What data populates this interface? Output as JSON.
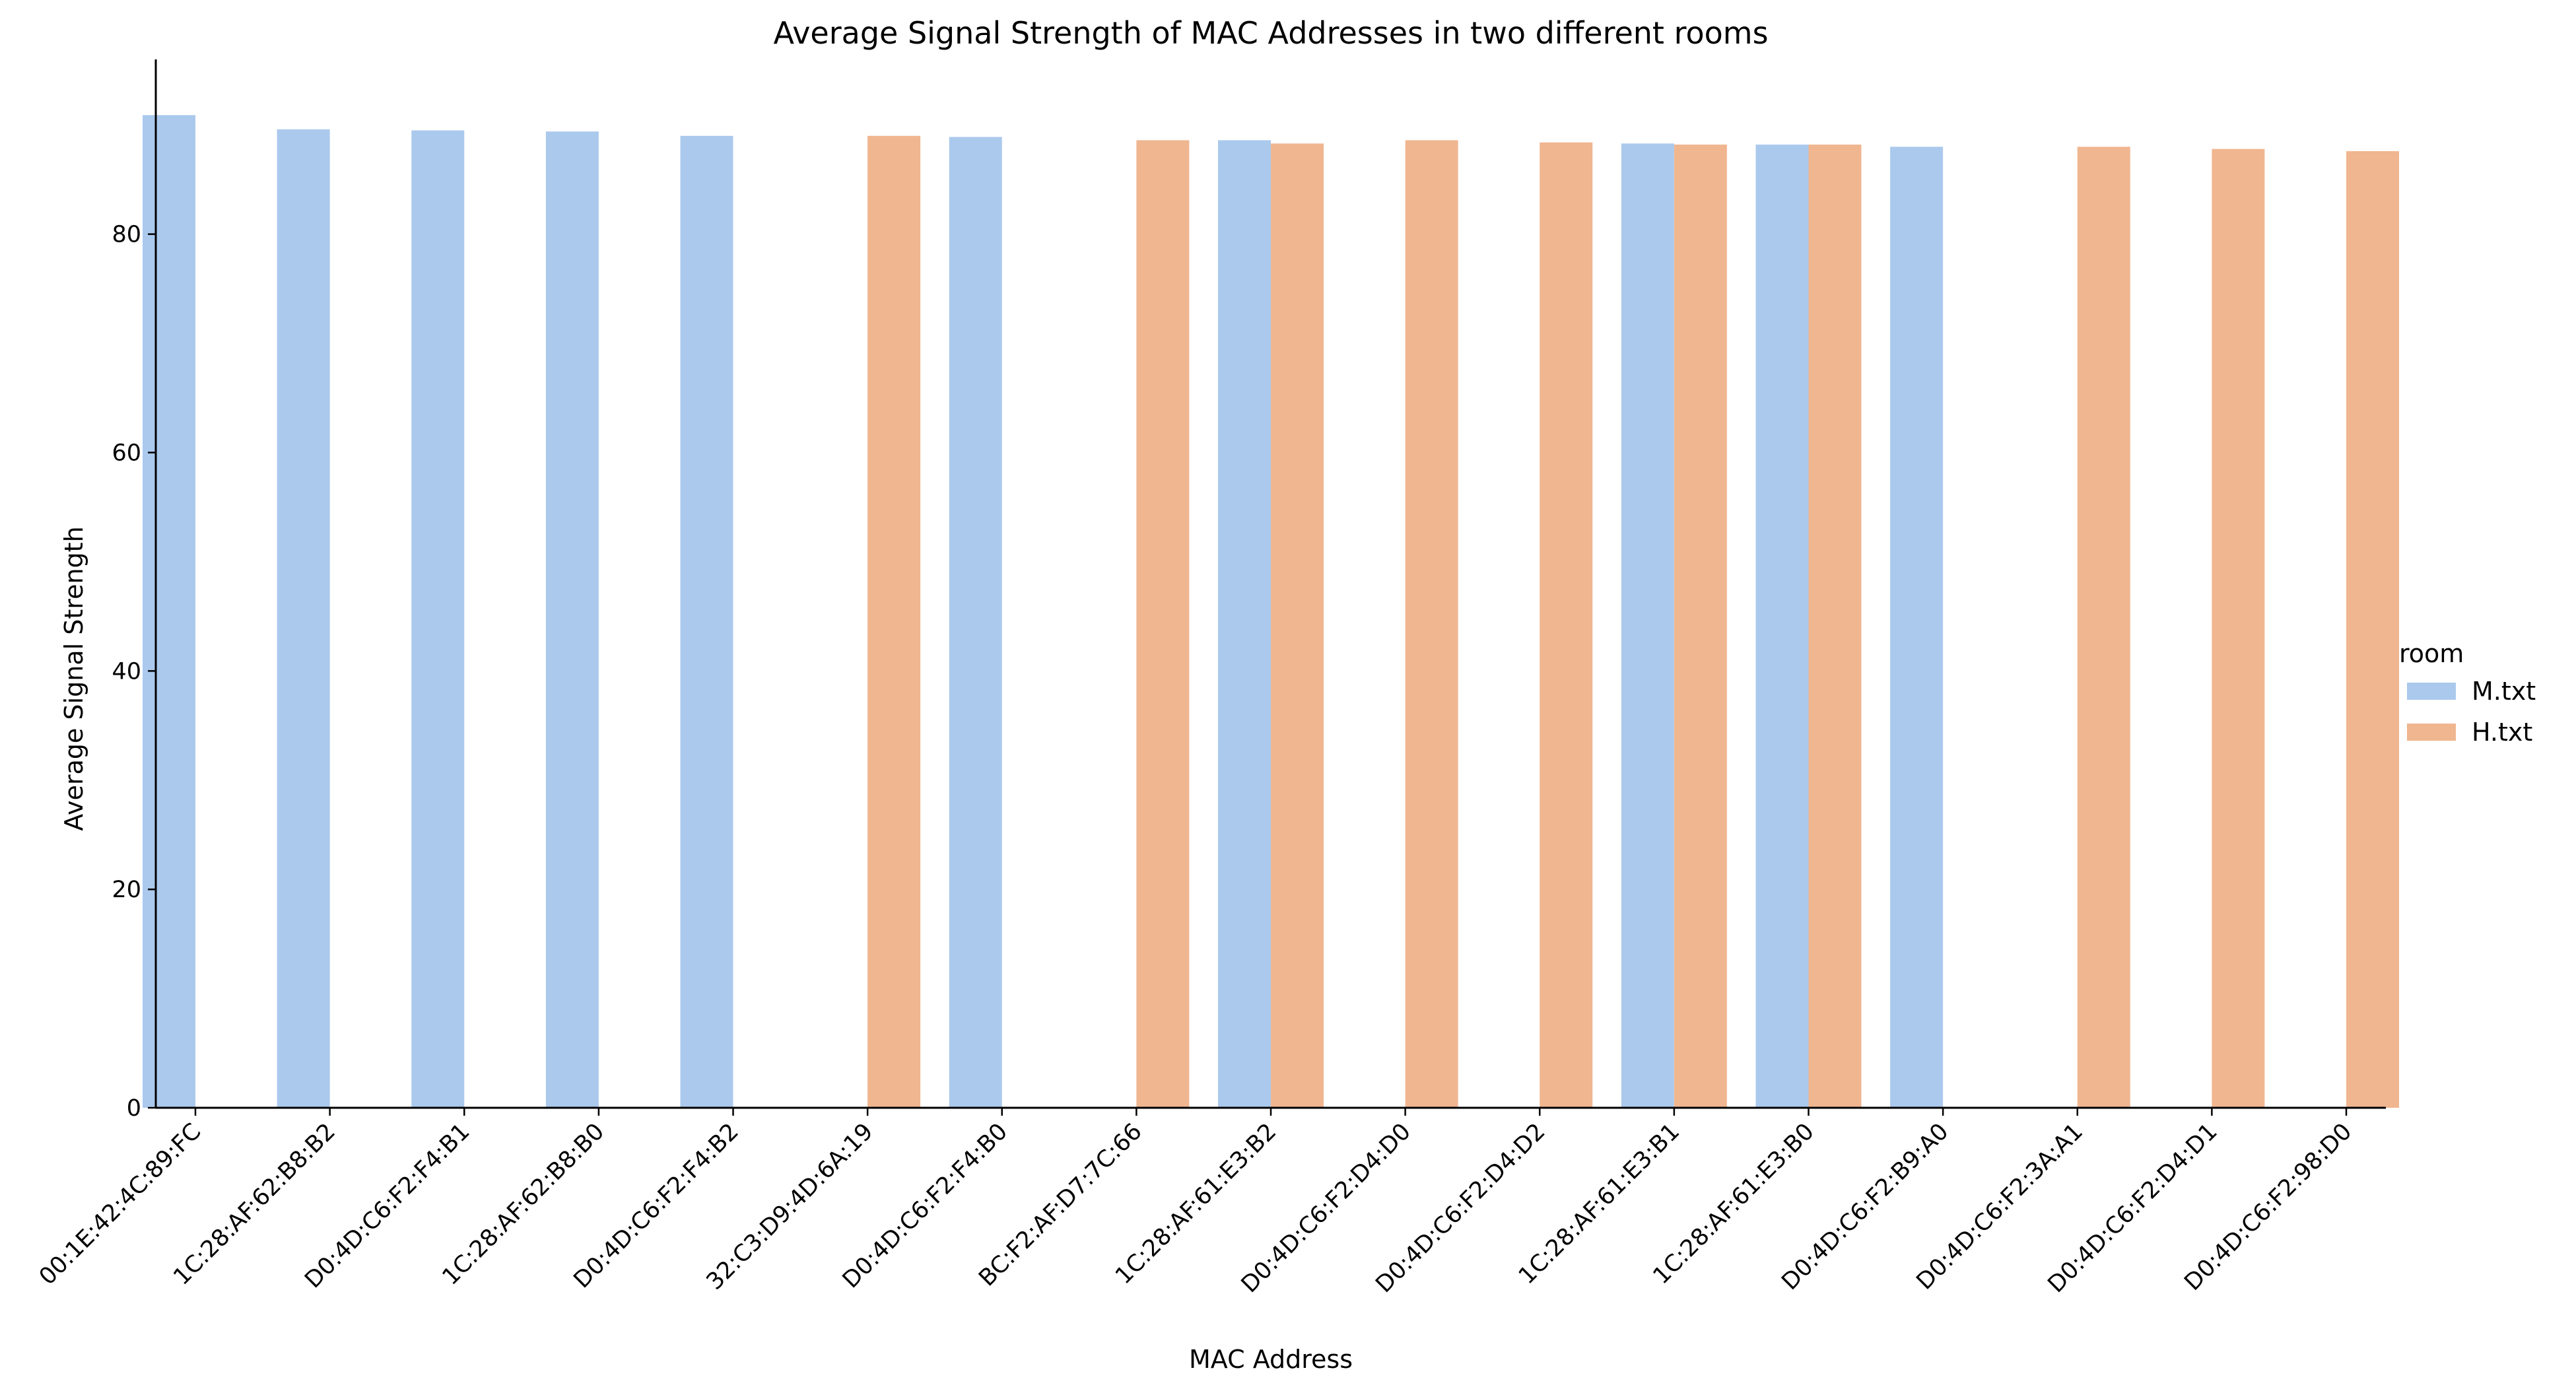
{
  "chart_data": {
    "type": "bar",
    "title": "Average Signal Strength of MAC Addresses in two different rooms",
    "xlabel": "MAC Address",
    "ylabel": "Average Signal Strength",
    "ylim": [
      0,
      96
    ],
    "yticks": [
      0,
      20,
      40,
      60,
      80
    ],
    "grid": false,
    "legend": {
      "title": "room",
      "placement": "right"
    },
    "categories": [
      "00:1E:42:4C:89:FC",
      "1C:28:AF:62:B8:B2",
      "D0:4D:C6:F2:F4:B1",
      "1C:28:AF:62:B8:B0",
      "D0:4D:C6:F2:F4:B2",
      "32:C3:D9:4D:6A:19",
      "D0:4D:C6:F2:F4:B0",
      "BC:F2:AF:D7:7C:66",
      "1C:28:AF:61:E3:B2",
      "D0:4D:C6:F2:D4:D0",
      "D0:4D:C6:F2:D4:D2",
      "1C:28:AF:61:E3:B1",
      "1C:28:AF:61:E3:B0",
      "D0:4D:C6:F2:B9:A0",
      "D0:4D:C6:F2:3A:A1",
      "D0:4D:C6:F2:D4:D1",
      "D0:4D:C6:F2:98:D0"
    ],
    "series": [
      {
        "name": "M.txt",
        "color": "#abc9ed",
        "values": [
          90.9,
          89.6,
          89.5,
          89.4,
          89.0,
          null,
          88.9,
          null,
          88.6,
          null,
          null,
          88.3,
          88.2,
          88.0,
          null,
          null,
          null
        ]
      },
      {
        "name": "H.txt",
        "color": "#f0b690",
        "values": [
          null,
          null,
          null,
          null,
          null,
          89.0,
          null,
          88.6,
          88.3,
          88.6,
          88.4,
          88.2,
          88.2,
          null,
          88.0,
          87.8,
          87.6
        ]
      }
    ]
  }
}
